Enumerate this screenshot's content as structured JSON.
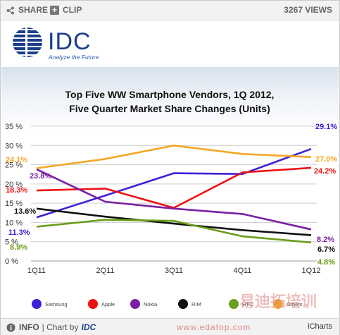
{
  "toolbar": {
    "share_label": "SHARE",
    "clip_label": "CLIP",
    "views_label": "3267 VIEWS"
  },
  "logo": {
    "name": "IDC",
    "tagline": "Analyze the Future"
  },
  "footer": {
    "info_label": "INFO",
    "chart_by_prefix": "| Chart by",
    "chart_by_name": "IDC",
    "credit": "iCharts"
  },
  "watermark": {
    "cn": "易迪拓培训",
    "url": "www.edatop.com"
  },
  "colors": {
    "Samsung": "#3f1fd8",
    "Apple": "#ee1111",
    "Nokia": "#7a1fa2",
    "RIM": "#111111",
    "HTC": "#6b9e1a",
    "Others": "#f5a623"
  },
  "chart_data": {
    "type": "line",
    "title": "Top Five WW Smartphone Vendors, 1Q 2012,",
    "subtitle": "Five Quarter Market Share Changes (Units)",
    "xlabel": "",
    "ylabel": "",
    "categories": [
      "1Q11",
      "2Q11",
      "3Q11",
      "4Q11",
      "1Q12"
    ],
    "ylim": [
      0,
      35
    ],
    "yticks": [
      "0 %",
      "5 %",
      "10 %",
      "15 %",
      "20 %",
      "25 %",
      "30 %",
      "35 %"
    ],
    "grid": true,
    "legend_position": "bottom",
    "series": [
      {
        "name": "Samsung",
        "values": [
          11.3,
          17.0,
          22.8,
          22.6,
          29.1
        ],
        "start_label": "11.3%",
        "end_label": "29.1%"
      },
      {
        "name": "Apple",
        "values": [
          18.3,
          18.8,
          13.8,
          23.0,
          24.2
        ],
        "start_label": "18.3%",
        "end_label": "24.2%"
      },
      {
        "name": "Nokia",
        "values": [
          23.8,
          15.4,
          13.6,
          12.2,
          8.2
        ],
        "start_label": "23.8%",
        "end_label": "8.2%"
      },
      {
        "name": "RIM",
        "values": [
          13.6,
          11.5,
          9.7,
          8.0,
          6.7
        ],
        "start_label": "13.6%",
        "end_label": "6.7%"
      },
      {
        "name": "HTC",
        "values": [
          8.9,
          10.7,
          10.4,
          6.4,
          4.8
        ],
        "start_label": "8.9%",
        "end_label": "4.8%"
      },
      {
        "name": "Others",
        "values": [
          24.1,
          26.5,
          30.0,
          27.8,
          27.0
        ],
        "start_label": "24.1%",
        "end_label": "27.0%"
      }
    ]
  }
}
